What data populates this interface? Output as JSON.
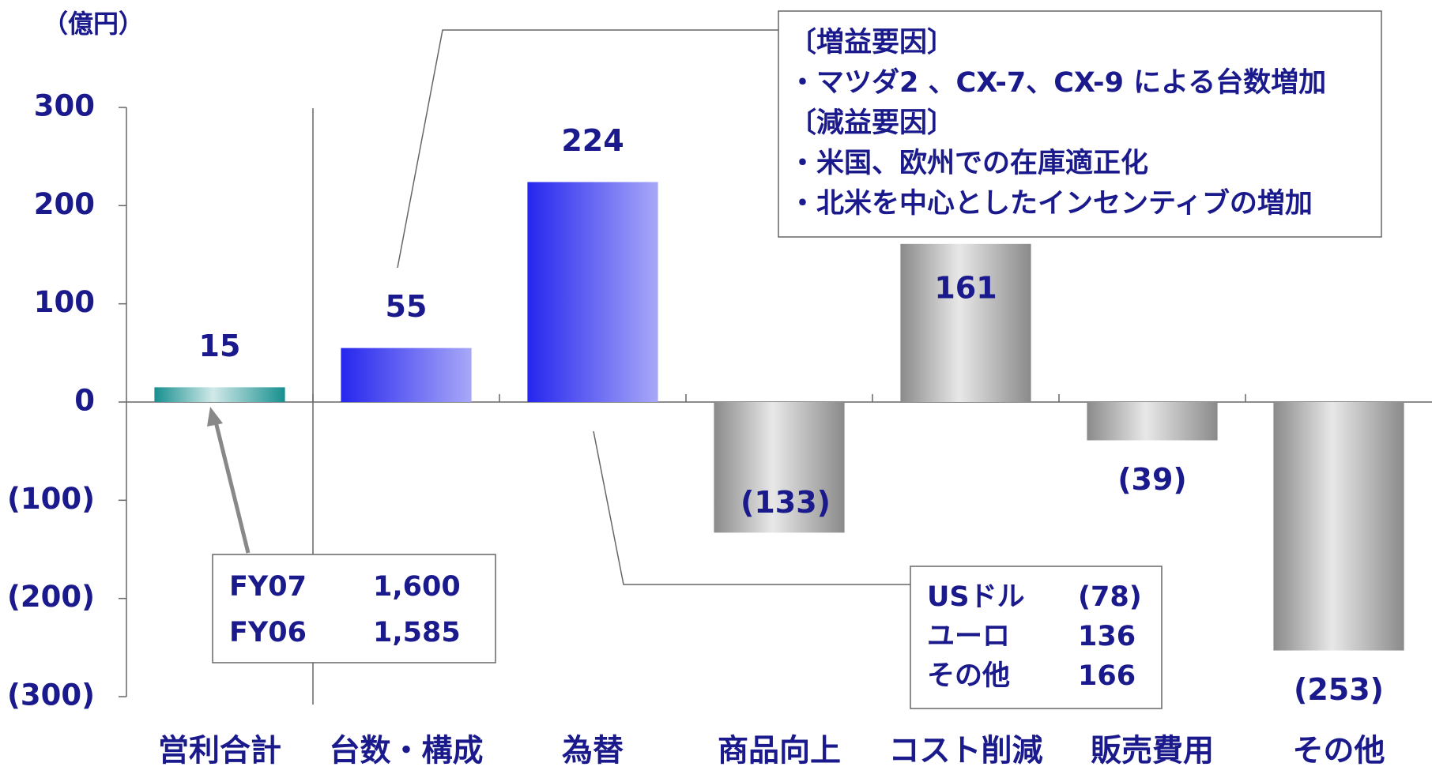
{
  "chart_data": {
    "type": "bar",
    "unit_label": "（億円）",
    "categories": [
      "営利合計",
      "台数・構成",
      "為替",
      "商品向上",
      "コスト削減",
      "販売費用",
      "その他"
    ],
    "values": [
      15,
      55,
      224,
      -133,
      161,
      -39,
      -253
    ],
    "value_labels": [
      "15",
      "55",
      "224",
      "(133)",
      "161",
      "(39)",
      "(253)"
    ],
    "colors": [
      "#178f8f",
      "#2626ee",
      "#2626ee",
      "#8a8a8a",
      "#8a8a8a",
      "#8a8a8a",
      "#8a8a8a"
    ],
    "ylim": [
      -300,
      300
    ],
    "yticks": [
      {
        "value": -300,
        "label": "(300)"
      },
      {
        "value": -200,
        "label": "(200)"
      },
      {
        "value": -100,
        "label": "(100)"
      },
      0,
      100,
      200,
      300
    ],
    "annotations": {
      "total_box": [
        [
          "FY07",
          "1,600"
        ],
        [
          "FY06",
          "1,585"
        ]
      ],
      "factor_box": [
        "〔増益要因〕",
        "・マツダ2 、CX-7、CX-9 による台数増加",
        "〔減益要因〕",
        "・米国、欧州での在庫適正化",
        "・北米を中心としたインセンティブの増加"
      ],
      "currency_box": [
        [
          "USドル",
          "(78)"
        ],
        [
          "ユーロ",
          "136"
        ],
        [
          "その他",
          "166"
        ]
      ]
    }
  }
}
